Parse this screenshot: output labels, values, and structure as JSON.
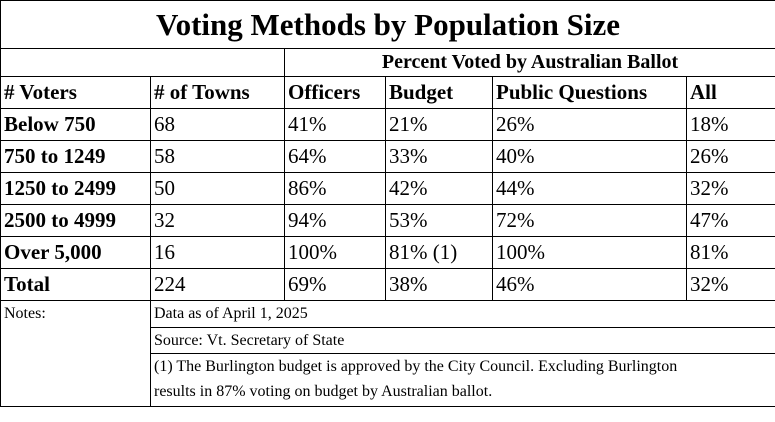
{
  "title": "Voting Methods by Population Size",
  "subtitle": "Percent Voted by Australian Ballot",
  "headers": {
    "voters": "# Voters",
    "towns": "# of Towns",
    "officers": "Officers",
    "budget": "Budget",
    "public_questions": "Public Questions",
    "all": "All"
  },
  "rows": [
    {
      "label": "Below 750",
      "towns": "68",
      "officers": "41%",
      "budget": "21%",
      "public_questions": "26%",
      "all": "18%"
    },
    {
      "label": "750 to 1249",
      "towns": "58",
      "officers": "64%",
      "budget": "33%",
      "public_questions": "40%",
      "all": "26%"
    },
    {
      "label": "1250 to 2499",
      "towns": "50",
      "officers": "86%",
      "budget": "42%",
      "public_questions": "44%",
      "all": "32%"
    },
    {
      "label": "2500 to 4999",
      "towns": "32",
      "officers": "94%",
      "budget": "53%",
      "public_questions": "72%",
      "all": "47%"
    },
    {
      "label": "Over 5,000",
      "towns": "16",
      "officers": "100%",
      "budget": "81% (1)",
      "public_questions": "100%",
      "all": "81%"
    },
    {
      "label": "Total",
      "towns": "224",
      "officers": "69%",
      "budget": "38%",
      "public_questions": "46%",
      "all": "32%"
    }
  ],
  "notes": {
    "label": "Notes:",
    "date": "Data as of April 1, 2025",
    "source": "Source: Vt. Secretary of State",
    "footnote": "(1) The Burlington budget is approved by the City Council. Excluding Burlington results in 87% voting on budget by Australian ballot."
  }
}
